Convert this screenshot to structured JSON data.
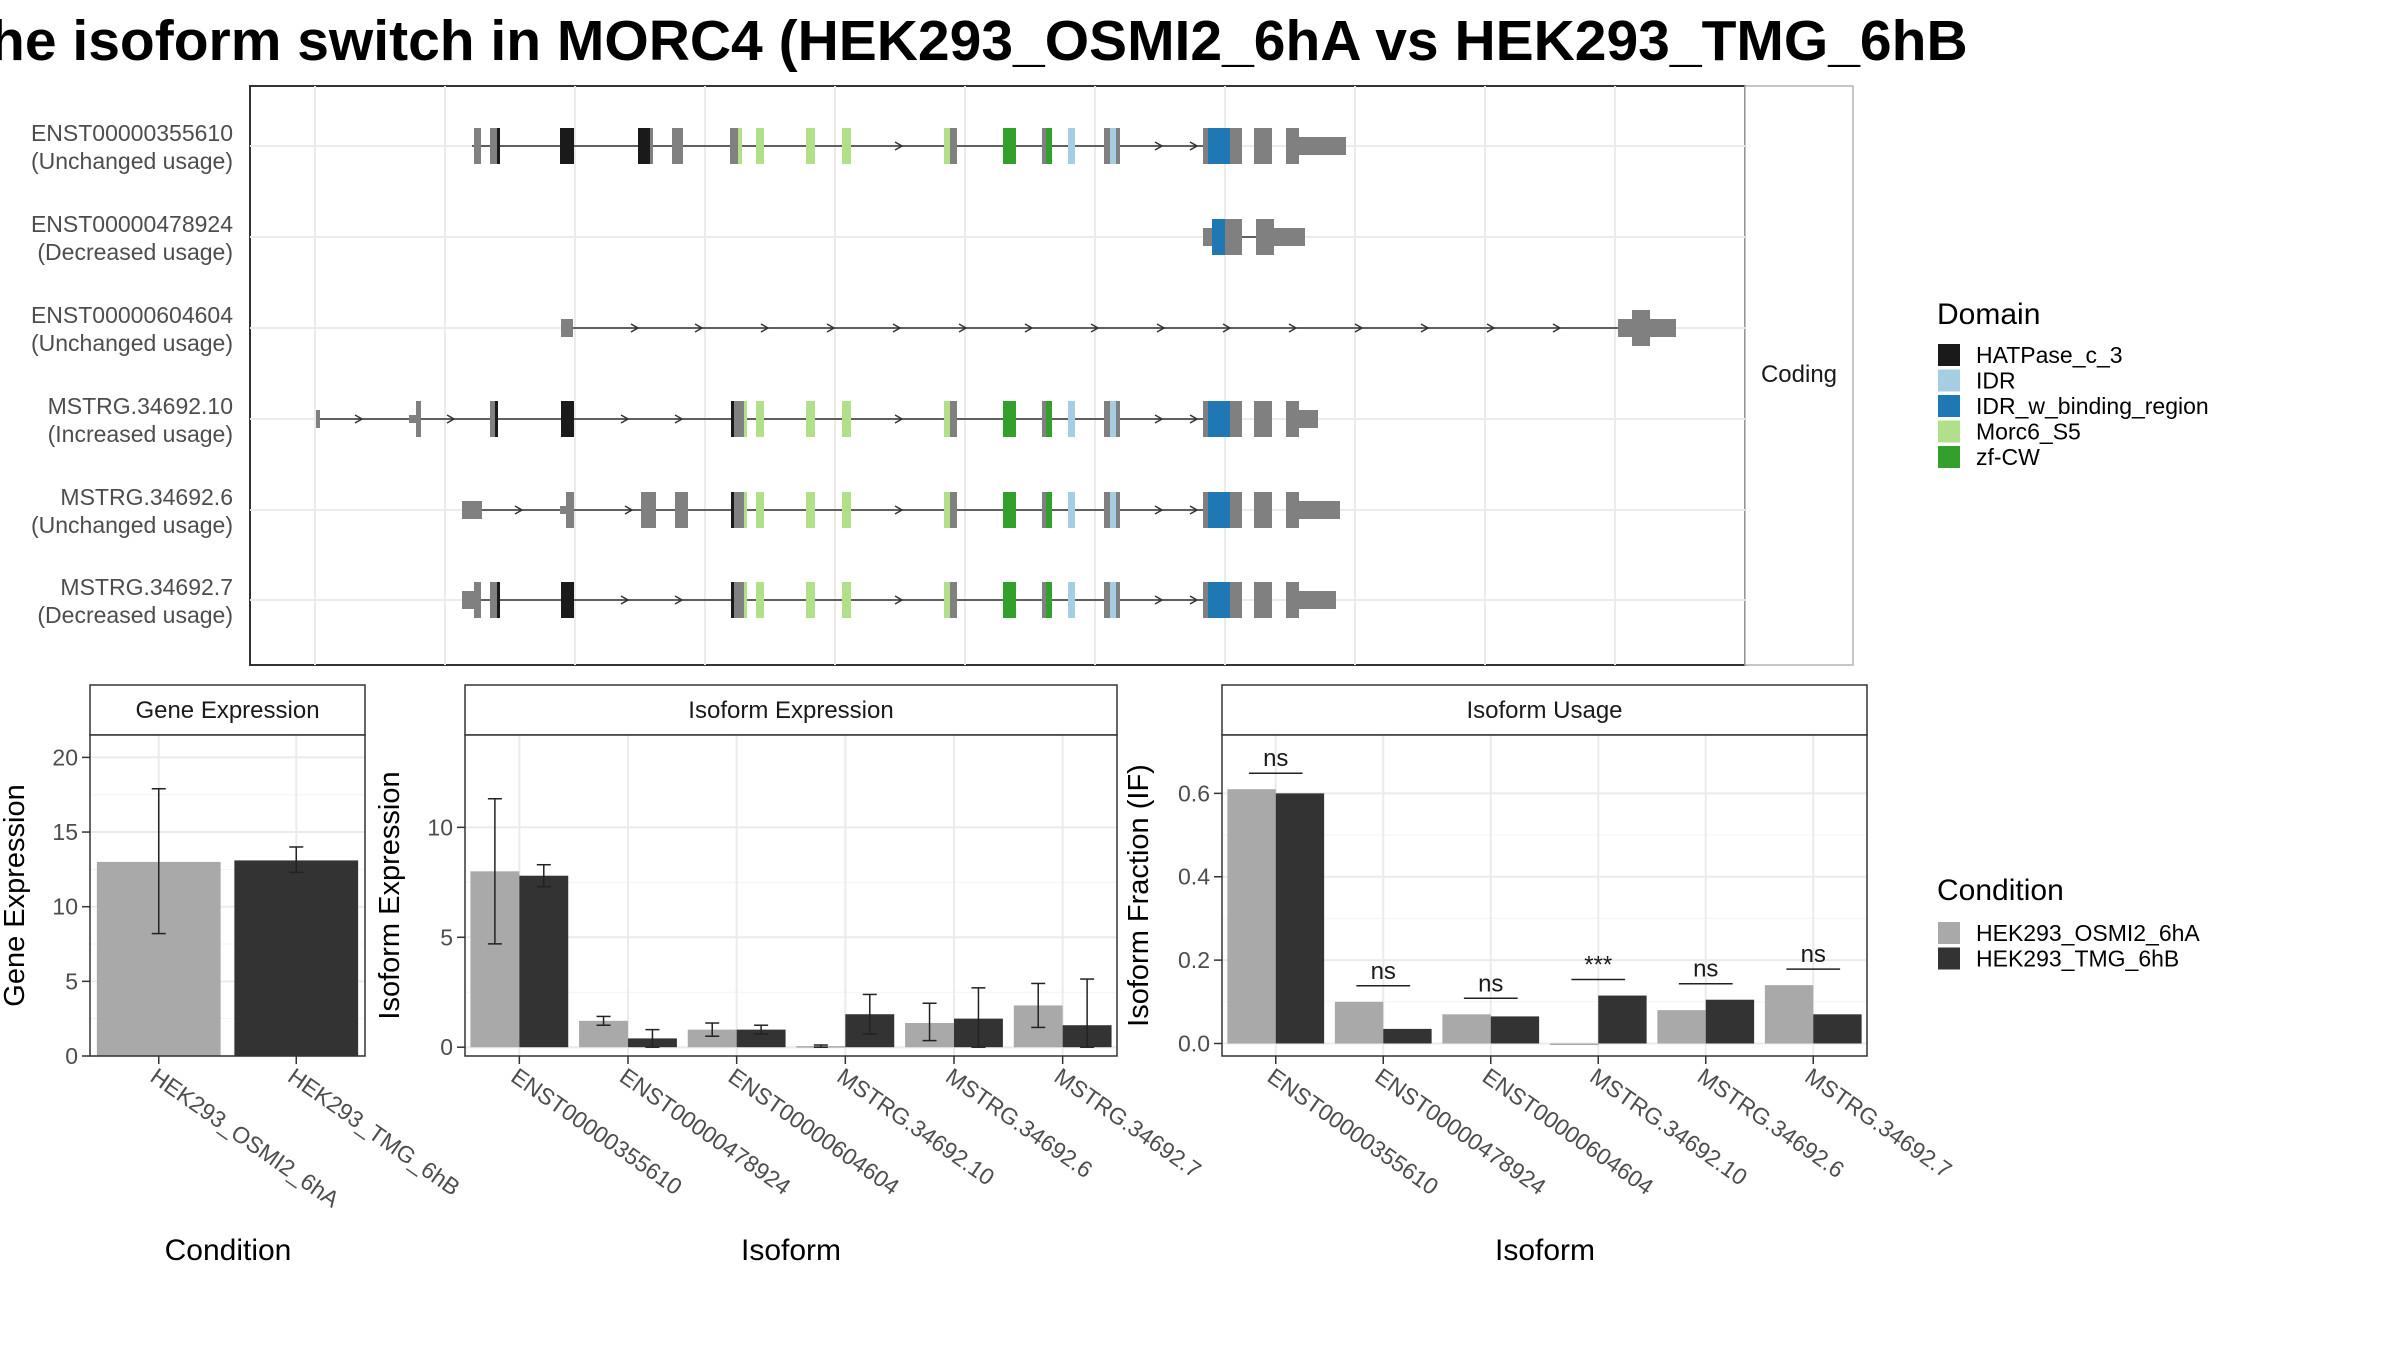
{
  "title": "he isoform switch in MORC4 (HEK293_OSMI2_6hA vs HEK293_TMG_6hB",
  "colors": {
    "HATPase_c_3": "#1a1a1a",
    "IDR": "#a6cee3",
    "IDR_w_binding_region": "#1f78b4",
    "Morc6_S5": "#b2df8a",
    "zf-CW": "#33a02c",
    "exon": "#808080",
    "cond_a": "#a9a9a9",
    "cond_b": "#333333"
  },
  "legend_domain": {
    "title": "Domain",
    "items": [
      "HATPase_c_3",
      "IDR",
      "IDR_w_binding_region",
      "Morc6_S5",
      "zf-CW"
    ]
  },
  "legend_condition": {
    "title": "Condition",
    "items": [
      "HEK293_OSMI2_6hA",
      "HEK293_TMG_6hB"
    ]
  },
  "structure": {
    "strip_label": "Coding",
    "transcripts": [
      {
        "id": "ENST00000355610",
        "usage": "(Unchanged usage)"
      },
      {
        "id": "ENST00000478924",
        "usage": "(Decreased usage)"
      },
      {
        "id": "ENST00000604604",
        "usage": "(Unchanged usage)"
      },
      {
        "id": "MSTRG.34692.10",
        "usage": "(Increased usage)"
      },
      {
        "id": "MSTRG.34692.6",
        "usage": "(Unchanged usage)"
      },
      {
        "id": "MSTRG.34692.7",
        "usage": "(Decreased usage)"
      }
    ]
  },
  "chart_data": [
    {
      "type": "bar",
      "panel_title": "Gene Expression",
      "xlabel": "Condition",
      "ylabel": "Gene Expression",
      "ylim": [
        0,
        21.5
      ],
      "yticks": [
        0,
        5,
        10,
        15,
        20
      ],
      "categories": [
        "HEK293_OSMI2_6hA",
        "HEK293_TMG_6hB"
      ],
      "values": [
        13.0,
        13.1
      ],
      "error_low": [
        8.2,
        12.3
      ],
      "error_high": [
        17.9,
        14.0
      ]
    },
    {
      "type": "bar",
      "panel_title": "Isoform Expression",
      "xlabel": "Isoform",
      "ylabel": "Isoform Expression",
      "ylim": [
        -0.4,
        14.2
      ],
      "yticks": [
        0,
        5,
        10
      ],
      "categories": [
        "ENST00000355610",
        "ENST00000478924",
        "ENST00000604604",
        "MSTRG.34692.10",
        "MSTRG.34692.6",
        "MSTRG.34692.7"
      ],
      "series": [
        {
          "name": "HEK293_OSMI2_6hA",
          "values": [
            8.0,
            1.2,
            0.8,
            0.05,
            1.1,
            1.9
          ],
          "error_low": [
            4.7,
            1.0,
            0.5,
            0.0,
            0.3,
            0.9
          ],
          "error_high": [
            11.3,
            1.4,
            1.1,
            0.1,
            2.0,
            2.9
          ]
        },
        {
          "name": "HEK293_TMG_6hB",
          "values": [
            7.8,
            0.4,
            0.8,
            1.5,
            1.3,
            1.0
          ],
          "error_low": [
            7.3,
            0.0,
            0.6,
            0.6,
            0.0,
            0.0
          ],
          "error_high": [
            8.3,
            0.8,
            1.0,
            2.4,
            2.7,
            3.1
          ]
        }
      ]
    },
    {
      "type": "bar",
      "panel_title": "Isoform Usage",
      "xlabel": "Isoform",
      "ylabel": "Isoform Fraction (IF)",
      "ylim": [
        -0.03,
        0.74
      ],
      "yticks": [
        "0.0",
        "0.2",
        "0.4",
        "0.6"
      ],
      "categories": [
        "ENST00000355610",
        "ENST00000478924",
        "ENST00000604604",
        "MSTRG.34692.10",
        "MSTRG.34692.6",
        "MSTRG.34692.7"
      ],
      "series": [
        {
          "name": "HEK293_OSMI2_6hA",
          "values": [
            0.61,
            0.1,
            0.07,
            0.0,
            0.08,
            0.14
          ]
        },
        {
          "name": "HEK293_TMG_6hB",
          "values": [
            0.6,
            0.035,
            0.065,
            0.115,
            0.105,
            0.07
          ]
        }
      ],
      "significance": [
        "ns",
        "ns",
        "ns",
        "***",
        "ns",
        "ns"
      ]
    }
  ]
}
